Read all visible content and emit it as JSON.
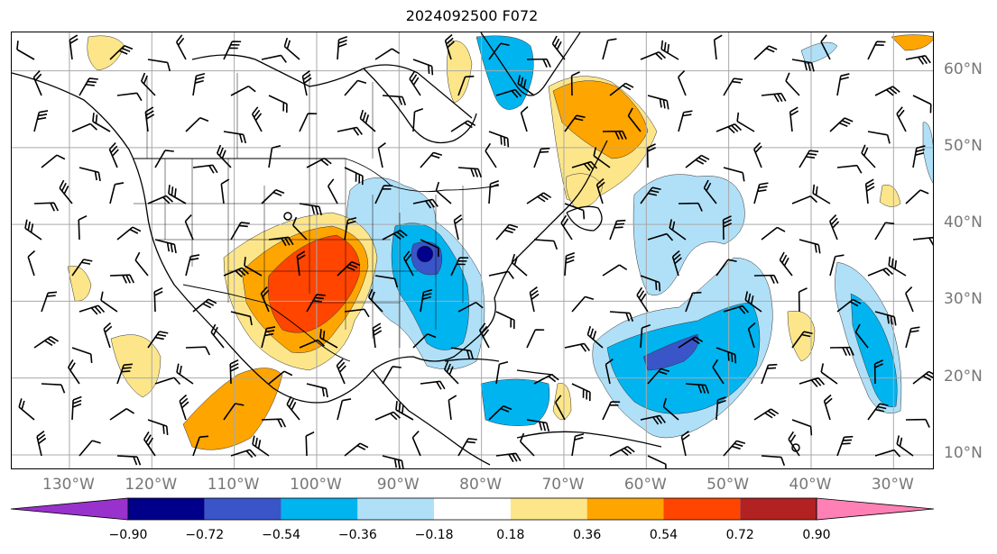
{
  "title": "2024092500 F072",
  "lat_labels": [
    {
      "text": "60°N",
      "lat": 60
    },
    {
      "text": "50°N",
      "lat": 50
    },
    {
      "text": "40°N",
      "lat": 40
    },
    {
      "text": "30°N",
      "lat": 30
    },
    {
      "text": "20°N",
      "lat": 20
    },
    {
      "text": "10°N",
      "lat": 10
    }
  ],
  "lon_labels": [
    {
      "text": "130°W",
      "lon": -130
    },
    {
      "text": "120°W",
      "lon": -120
    },
    {
      "text": "110°W",
      "lon": -110
    },
    {
      "text": "100°W",
      "lon": -100
    },
    {
      "text": "90°W",
      "lon": -90
    },
    {
      "text": "80°W",
      "lon": -80
    },
    {
      "text": "70°W",
      "lon": -70
    },
    {
      "text": "60°W",
      "lon": -60
    },
    {
      "text": "50°W",
      "lon": -50
    },
    {
      "text": "40°W",
      "lon": -40
    },
    {
      "text": "30°W",
      "lon": -30
    }
  ],
  "colorbar": {
    "levels": [
      "−0.90",
      "−0.72",
      "−0.54",
      "−0.36",
      "−0.18",
      "0.18",
      "0.36",
      "0.54",
      "0.72",
      "0.90"
    ],
    "colors": [
      "#9932cc",
      "#00008b",
      "#3a55c8",
      "#00b4f0",
      "#b0e0f8",
      "#ffffff",
      "#fde68a",
      "#ffa500",
      "#ff4500",
      "#b22222",
      "#ff80b4"
    ]
  },
  "map_extent": {
    "lon_min": -137,
    "lon_max": -25,
    "lat_min": 8,
    "lat_max": 65
  }
}
